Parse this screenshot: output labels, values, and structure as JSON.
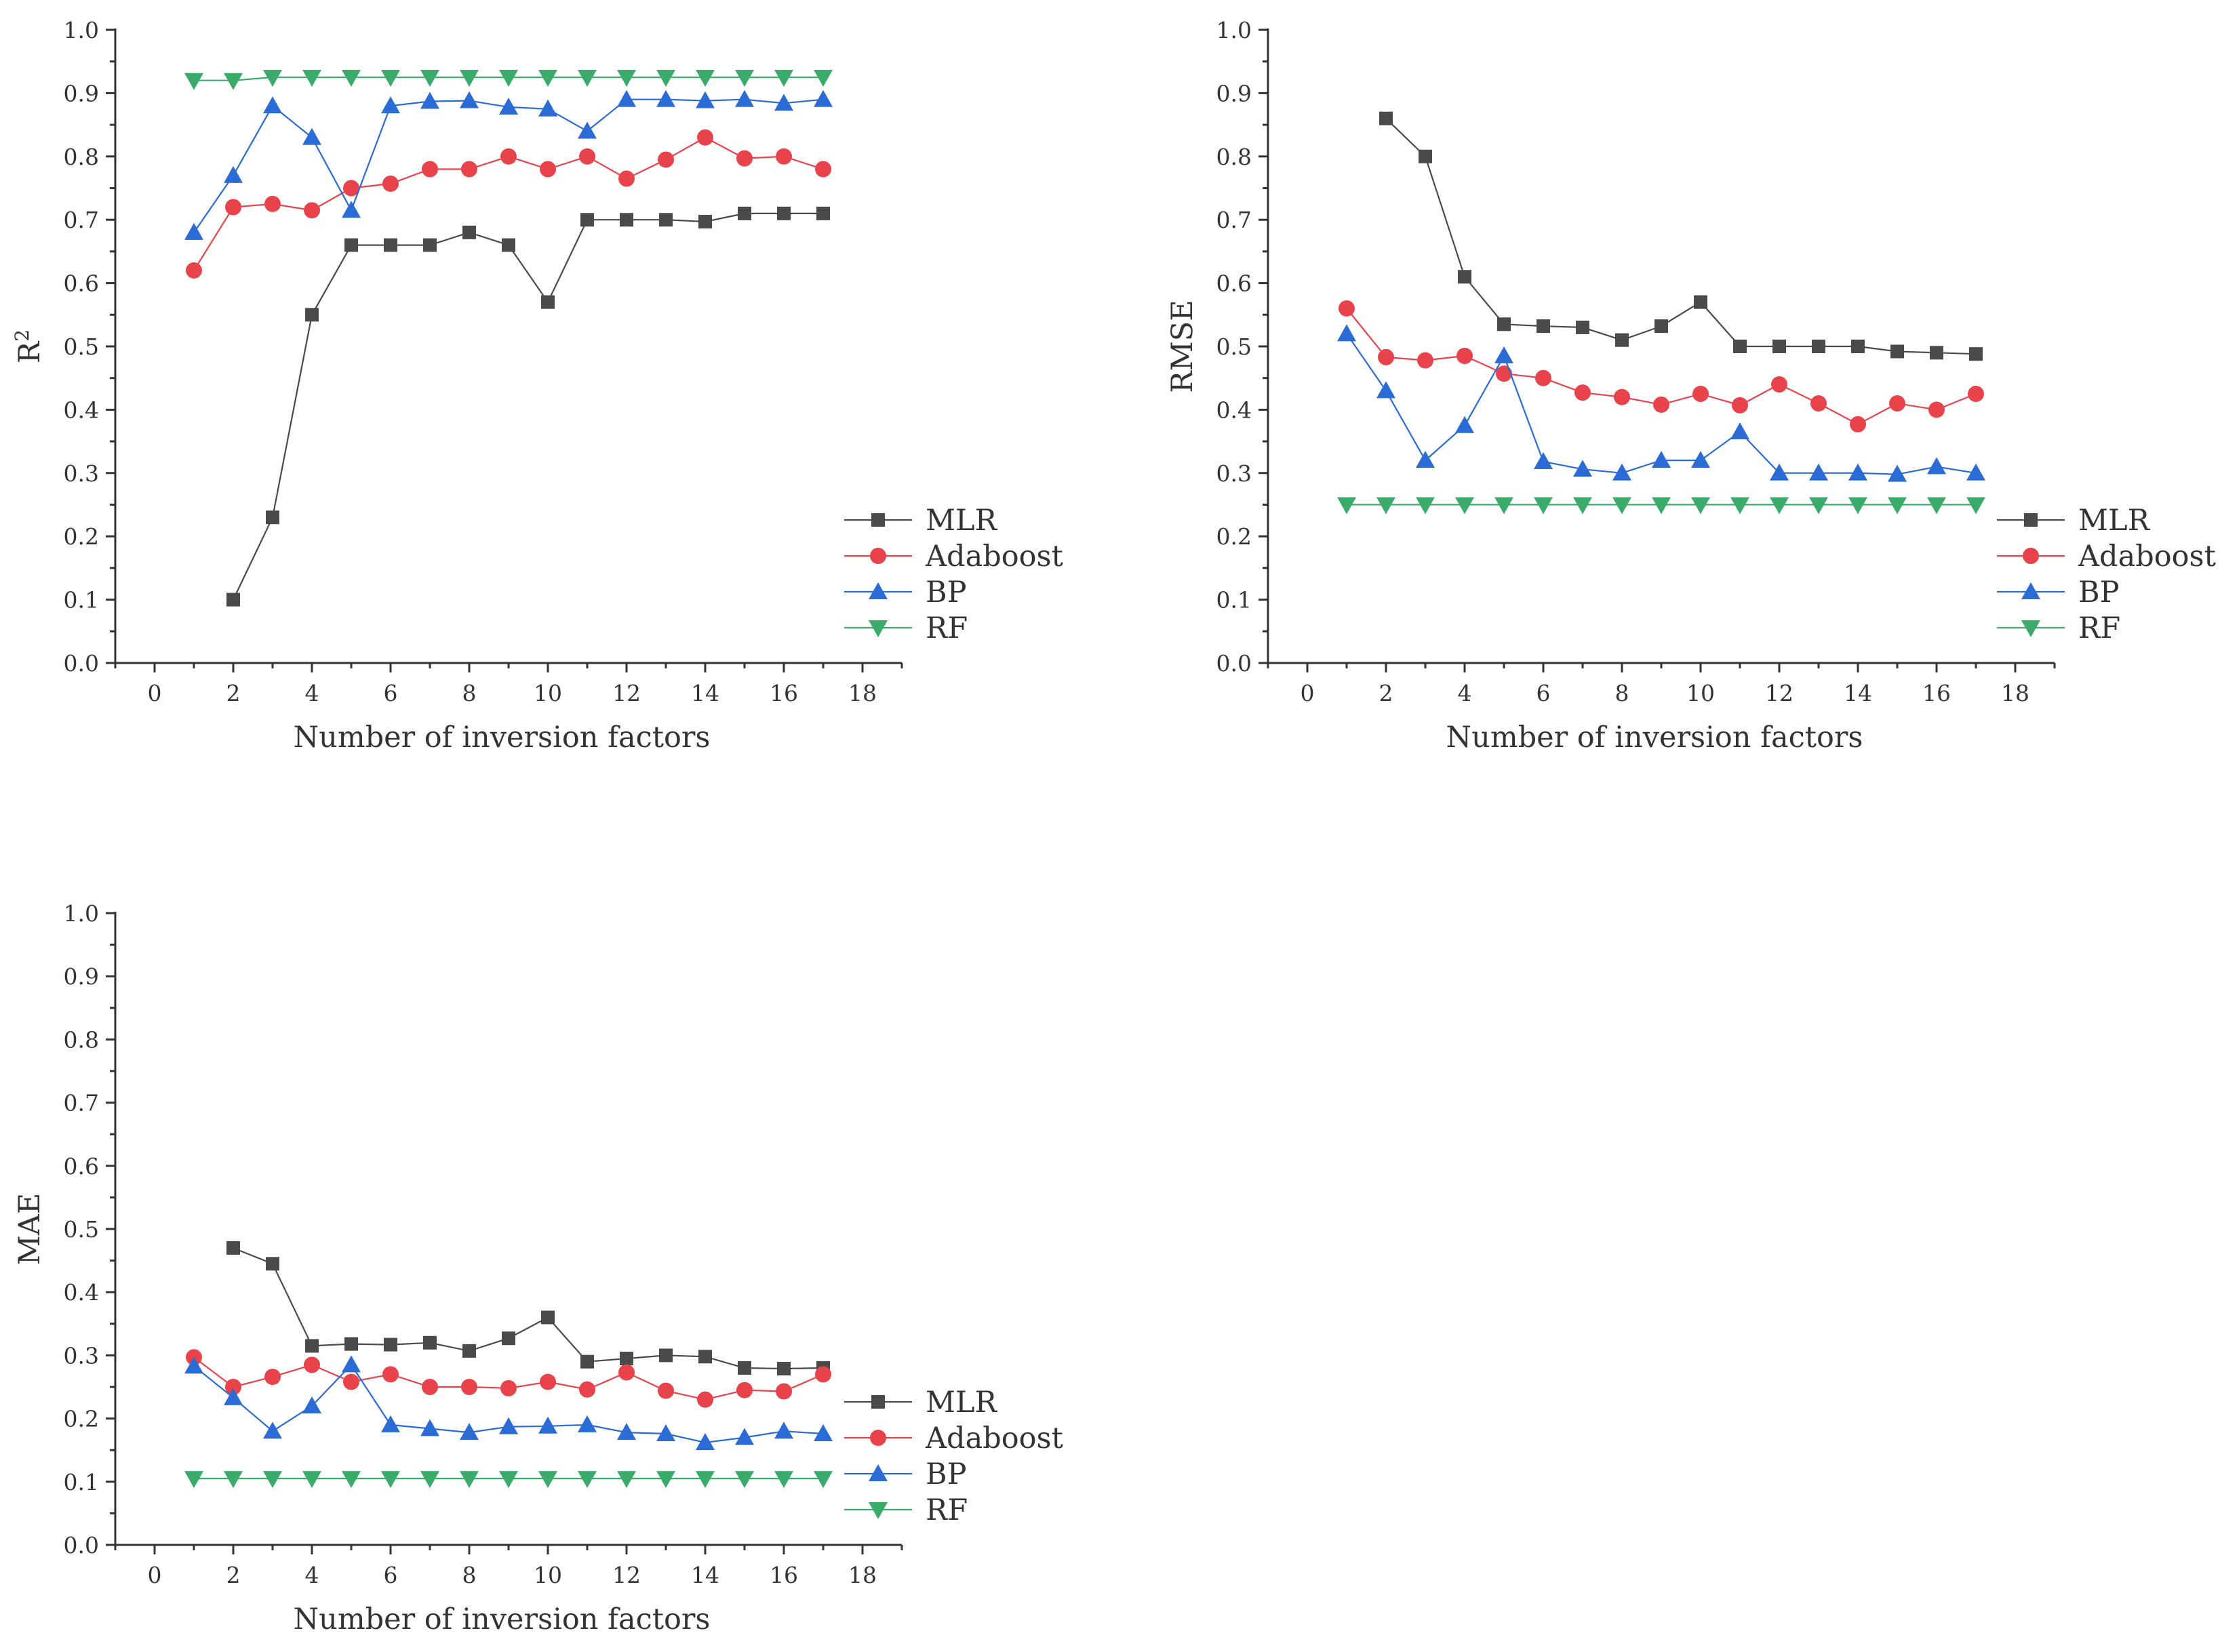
{
  "chart_data": [
    {
      "type": "line",
      "title": "",
      "xlabel": "Number of inversion factors",
      "ylabel": "R",
      "ylabel_sup": "2",
      "xlim": [
        -1,
        19
      ],
      "ylim": [
        0,
        1
      ],
      "x_ticks": [
        "0",
        "2",
        "4",
        "6",
        "8",
        "10",
        "12",
        "14",
        "16",
        "18"
      ],
      "y_ticks": [
        "0.0",
        "0.1",
        "0.2",
        "0.3",
        "0.4",
        "0.5",
        "0.6",
        "0.7",
        "0.8",
        "0.9",
        "1.0"
      ],
      "legend_position": "right",
      "series": [
        {
          "name": "MLR",
          "marker": "square",
          "color": "#4a4a4a",
          "x": [
            2,
            3,
            4,
            5,
            6,
            7,
            8,
            9,
            10,
            11,
            12,
            13,
            14,
            15,
            16,
            17
          ],
          "y": [
            0.1,
            0.23,
            0.55,
            0.66,
            0.66,
            0.66,
            0.68,
            0.66,
            0.57,
            0.7,
            0.7,
            0.7,
            0.697,
            0.71,
            0.71,
            0.71
          ]
        },
        {
          "name": "Adaboost",
          "marker": "circle",
          "color": "#e8434b",
          "x": [
            1,
            2,
            3,
            4,
            5,
            6,
            7,
            8,
            9,
            10,
            11,
            12,
            13,
            14,
            15,
            16,
            17
          ],
          "y": [
            0.62,
            0.72,
            0.725,
            0.715,
            0.75,
            0.757,
            0.78,
            0.78,
            0.8,
            0.78,
            0.8,
            0.765,
            0.795,
            0.83,
            0.797,
            0.8,
            0.78
          ]
        },
        {
          "name": "BP",
          "marker": "triangle-up",
          "color": "#2a6bd6",
          "x": [
            1,
            2,
            3,
            4,
            5,
            6,
            7,
            8,
            9,
            10,
            11,
            12,
            13,
            14,
            15,
            16,
            17
          ],
          "y": [
            0.68,
            0.77,
            0.88,
            0.83,
            0.715,
            0.88,
            0.887,
            0.888,
            0.878,
            0.875,
            0.84,
            0.89,
            0.89,
            0.888,
            0.89,
            0.884,
            0.89
          ]
        },
        {
          "name": "RF",
          "marker": "triangle-down",
          "color": "#3aab6a",
          "x": [
            1,
            2,
            3,
            4,
            5,
            6,
            7,
            8,
            9,
            10,
            11,
            12,
            13,
            14,
            15,
            16,
            17
          ],
          "y": [
            0.92,
            0.92,
            0.925,
            0.925,
            0.925,
            0.925,
            0.925,
            0.925,
            0.925,
            0.925,
            0.925,
            0.925,
            0.925,
            0.925,
            0.925,
            0.925,
            0.925
          ]
        }
      ]
    },
    {
      "type": "line",
      "title": "",
      "xlabel": "Number of inversion factors",
      "ylabel": "RMSE",
      "ylabel_sup": "",
      "xlim": [
        -1,
        19
      ],
      "ylim": [
        0,
        1
      ],
      "x_ticks": [
        "0",
        "2",
        "4",
        "6",
        "8",
        "10",
        "12",
        "14",
        "16",
        "18"
      ],
      "y_ticks": [
        "0.0",
        "0.1",
        "0.2",
        "0.3",
        "0.4",
        "0.5",
        "0.6",
        "0.7",
        "0.8",
        "0.9",
        "1.0"
      ],
      "legend_position": "right",
      "series": [
        {
          "name": "MLR",
          "marker": "square",
          "color": "#4a4a4a",
          "x": [
            2,
            3,
            4,
            5,
            6,
            7,
            8,
            9,
            10,
            11,
            12,
            13,
            14,
            15,
            16,
            17
          ],
          "y": [
            0.86,
            0.8,
            0.61,
            0.535,
            0.532,
            0.53,
            0.51,
            0.532,
            0.57,
            0.5,
            0.5,
            0.5,
            0.5,
            0.492,
            0.49,
            0.488
          ]
        },
        {
          "name": "Adaboost",
          "marker": "circle",
          "color": "#e8434b",
          "x": [
            1,
            2,
            3,
            4,
            5,
            6,
            7,
            8,
            9,
            10,
            11,
            12,
            13,
            14,
            15,
            16,
            17
          ],
          "y": [
            0.56,
            0.483,
            0.478,
            0.485,
            0.457,
            0.45,
            0.427,
            0.42,
            0.408,
            0.425,
            0.407,
            0.44,
            0.41,
            0.377,
            0.41,
            0.4,
            0.425
          ]
        },
        {
          "name": "BP",
          "marker": "triangle-up",
          "color": "#2a6bd6",
          "x": [
            1,
            2,
            3,
            4,
            5,
            6,
            7,
            8,
            9,
            10,
            11,
            12,
            13,
            14,
            15,
            16,
            17
          ],
          "y": [
            0.52,
            0.43,
            0.32,
            0.375,
            0.485,
            0.318,
            0.306,
            0.3,
            0.32,
            0.32,
            0.365,
            0.3,
            0.3,
            0.3,
            0.298,
            0.31,
            0.3
          ]
        },
        {
          "name": "RF",
          "marker": "triangle-down",
          "color": "#3aab6a",
          "x": [
            1,
            2,
            3,
            4,
            5,
            6,
            7,
            8,
            9,
            10,
            11,
            12,
            13,
            14,
            15,
            16,
            17
          ],
          "y": [
            0.25,
            0.25,
            0.25,
            0.25,
            0.25,
            0.25,
            0.25,
            0.25,
            0.25,
            0.25,
            0.25,
            0.25,
            0.25,
            0.25,
            0.25,
            0.25,
            0.25
          ]
        }
      ]
    },
    {
      "type": "line",
      "title": "",
      "xlabel": "Number of inversion factors",
      "ylabel": "MAE",
      "ylabel_sup": "",
      "xlim": [
        -1,
        19
      ],
      "ylim": [
        0,
        1
      ],
      "x_ticks": [
        "0",
        "2",
        "4",
        "6",
        "8",
        "10",
        "12",
        "14",
        "16",
        "18"
      ],
      "y_ticks": [
        "0.0",
        "0.1",
        "0.2",
        "0.3",
        "0.4",
        "0.5",
        "0.6",
        "0.7",
        "0.8",
        "0.9",
        "1.0"
      ],
      "legend_position": "right",
      "series": [
        {
          "name": "MLR",
          "marker": "square",
          "color": "#4a4a4a",
          "x": [
            2,
            3,
            4,
            5,
            6,
            7,
            8,
            9,
            10,
            11,
            12,
            13,
            14,
            15,
            16,
            17
          ],
          "y": [
            0.47,
            0.445,
            0.315,
            0.318,
            0.317,
            0.32,
            0.307,
            0.327,
            0.36,
            0.29,
            0.295,
            0.3,
            0.298,
            0.28,
            0.279,
            0.28
          ]
        },
        {
          "name": "Adaboost",
          "marker": "circle",
          "color": "#e8434b",
          "x": [
            1,
            2,
            3,
            4,
            5,
            6,
            7,
            8,
            9,
            10,
            11,
            12,
            13,
            14,
            15,
            16,
            17
          ],
          "y": [
            0.297,
            0.25,
            0.266,
            0.285,
            0.258,
            0.27,
            0.25,
            0.25,
            0.248,
            0.258,
            0.246,
            0.273,
            0.244,
            0.23,
            0.245,
            0.243,
            0.27
          ]
        },
        {
          "name": "BP",
          "marker": "triangle-up",
          "color": "#2a6bd6",
          "x": [
            1,
            2,
            3,
            4,
            5,
            6,
            7,
            8,
            9,
            10,
            11,
            12,
            13,
            14,
            15,
            16,
            17
          ],
          "y": [
            0.283,
            0.233,
            0.18,
            0.22,
            0.285,
            0.19,
            0.184,
            0.178,
            0.187,
            0.188,
            0.19,
            0.178,
            0.176,
            0.162,
            0.17,
            0.18,
            0.176
          ]
        },
        {
          "name": "RF",
          "marker": "triangle-down",
          "color": "#3aab6a",
          "x": [
            1,
            2,
            3,
            4,
            5,
            6,
            7,
            8,
            9,
            10,
            11,
            12,
            13,
            14,
            15,
            16,
            17
          ],
          "y": [
            0.105,
            0.105,
            0.105,
            0.105,
            0.105,
            0.105,
            0.105,
            0.105,
            0.105,
            0.105,
            0.105,
            0.105,
            0.105,
            0.105,
            0.105,
            0.105,
            0.105
          ]
        }
      ]
    }
  ]
}
